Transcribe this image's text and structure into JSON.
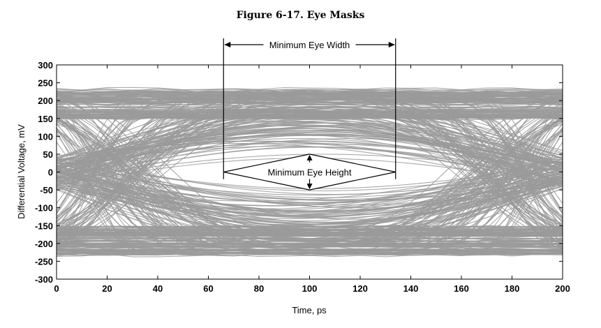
{
  "figure": {
    "title": "Figure 6-17.  Eye Masks"
  },
  "chart_data": {
    "type": "line",
    "title": "",
    "xlabel": "Time, ps",
    "ylabel": "Differential Voltage, mV",
    "xlim": [
      0,
      200
    ],
    "ylim": [
      -300,
      300
    ],
    "xticks": [
      0,
      20,
      40,
      60,
      80,
      100,
      120,
      140,
      160,
      180,
      200
    ],
    "yticks": [
      300,
      250,
      200,
      150,
      100,
      50,
      0,
      -50,
      -100,
      -150,
      -200,
      -250,
      -300
    ],
    "grid": false,
    "trace_color": "#9a9a9a",
    "eye": {
      "center_ps": 100,
      "crossing_ps": [
        0,
        200
      ],
      "high_level_mv": [
        150,
        235
      ],
      "low_level_mv": [
        -235,
        -150
      ],
      "inner_opening_mv": 70
    },
    "annotations": [
      {
        "label": "Minimum Eye Width",
        "x_from": 66,
        "x_to": 134
      },
      {
        "label": "Minimum Eye Height",
        "center_x": 100,
        "y_from": -50,
        "y_to": 50,
        "x_from": 66,
        "x_to": 134
      }
    ]
  }
}
